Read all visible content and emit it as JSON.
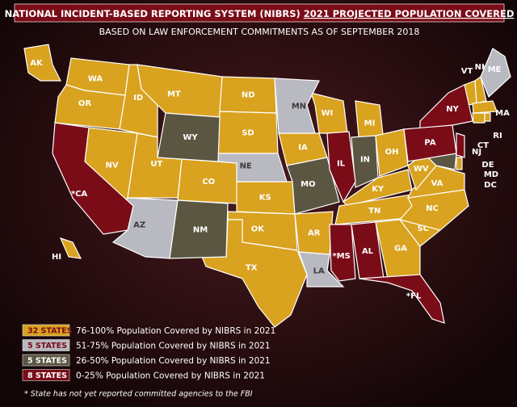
{
  "title_plain": "NATIONAL INCIDENT-BASED REPORTING SYSTEM (NIBRS) ",
  "title_underlined": "2021 PROJECTED POPULATION COVERED",
  "subtitle": "BASED ON LAW ENFORCEMENT COMMITMENTS AS OF SEPTEMBER 2018",
  "legend": [
    {
      "count_label": "32 STATES",
      "description": "76-100% Population Covered by NIBRS in 2021",
      "color": "#d9a21f",
      "states": [
        "AK",
        "WA",
        "OR",
        "ID",
        "MT",
        "ND",
        "SD",
        "NV",
        "UT",
        "CO",
        "KS",
        "OK",
        "TX",
        "HI",
        "IA",
        "WI",
        "MI",
        "OH",
        "KY",
        "TN",
        "AR",
        "GA",
        "SC",
        "NC",
        "VA",
        "WV",
        "VT",
        "NH",
        "MA",
        "CT",
        "RI",
        "DE"
      ]
    },
    {
      "count_label": "5 STATES",
      "description": "51-75% Population Covered by NIBRS in 2021",
      "color": "#b9b9c1",
      "states": [
        "MN",
        "NE",
        "AZ",
        "LA",
        "ME"
      ]
    },
    {
      "count_label": "5 STATES",
      "description": "26-50% Population Covered by NIBRS in 2021",
      "color": "#5b5642",
      "states": [
        "WY",
        "NM",
        "MO",
        "IN",
        "MD"
      ]
    },
    {
      "count_label": "8 STATES",
      "description": "0-25% Population Covered by NIBRS in 2021",
      "color": "#7a0c18",
      "states": [
        "*CA",
        "IL",
        "*MS",
        "AL",
        "*FL",
        "NY",
        "PA",
        "NJ"
      ]
    }
  ],
  "other_labels": [
    "DC"
  ],
  "footnote": "* State has not yet reported committed agencies to the FBI"
}
